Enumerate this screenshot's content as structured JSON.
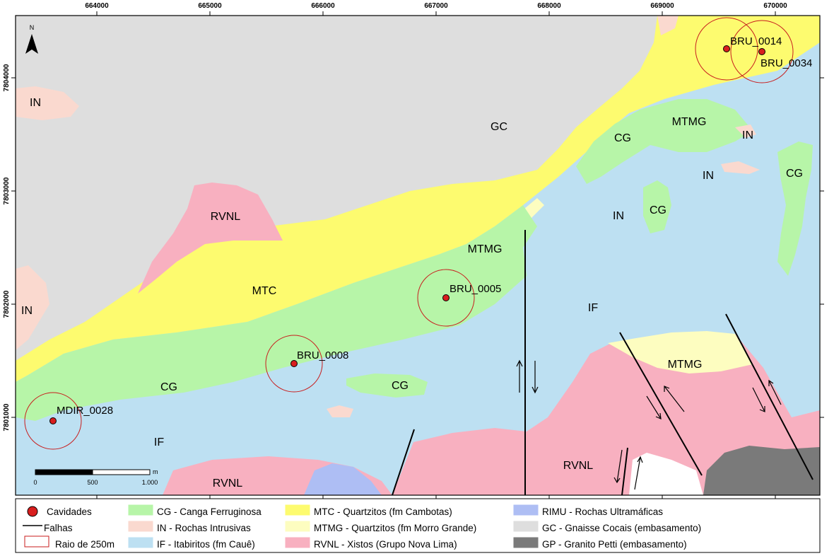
{
  "colors": {
    "CG": "#b7f5a8",
    "IN": "#fad9cf",
    "IF": "#bde0f2",
    "MTC": "#fdfb6f",
    "MTMG": "#fdfdc0",
    "RVNL": "#f8b0c0",
    "RIMU": "#aebef4",
    "GC": "#dedede",
    "GP": "#7a7a7a",
    "cave": "#d81e1e",
    "radius": "#c81e1e"
  },
  "north_arrow": {
    "label": "N"
  },
  "x_ticks": [
    "664000",
    "665000",
    "666000",
    "667000",
    "668000",
    "669000",
    "670000"
  ],
  "y_ticks": [
    "7804000",
    "7803000",
    "7802000",
    "7801000"
  ],
  "scale_bar": {
    "labels": [
      "0",
      "500",
      "1.000"
    ],
    "unit": "m"
  },
  "unit_labels": [
    {
      "id": "in-1",
      "text": "IN"
    },
    {
      "id": "in-2",
      "text": "IN"
    },
    {
      "id": "in-3",
      "text": "IN"
    },
    {
      "id": "in-4",
      "text": "IN"
    },
    {
      "id": "in-5",
      "text": "IN"
    },
    {
      "id": "gc-1",
      "text": "GC"
    },
    {
      "id": "rvnl-1",
      "text": "RVNL"
    },
    {
      "id": "rvnl-2",
      "text": "RVNL"
    },
    {
      "id": "rvnl-3",
      "text": "RVNL"
    },
    {
      "id": "mtc-1",
      "text": "MTC"
    },
    {
      "id": "mtmg-1",
      "text": "MTMG"
    },
    {
      "id": "mtmg-2",
      "text": "MTMG"
    },
    {
      "id": "mtmg-3",
      "text": "MTMG"
    },
    {
      "id": "cg-1",
      "text": "CG"
    },
    {
      "id": "cg-2",
      "text": "CG"
    },
    {
      "id": "cg-3",
      "text": "CG"
    },
    {
      "id": "cg-4",
      "text": "CG"
    },
    {
      "id": "cg-5",
      "text": "CG"
    },
    {
      "id": "if-1",
      "text": "IF"
    },
    {
      "id": "if-2",
      "text": "IF"
    }
  ],
  "caves": [
    {
      "id": "BRU_0014",
      "label": "BRU_0014"
    },
    {
      "id": "BRU_0034",
      "label": "BRU_0034"
    },
    {
      "id": "BRU_0005",
      "label": "BRU_0005"
    },
    {
      "id": "BRU_0008",
      "label": "BRU_0008"
    },
    {
      "id": "MDIR_0028",
      "label": "MDIR_0028"
    }
  ],
  "legend": {
    "symbols": [
      {
        "label": "Cavidades",
        "kind": "cave"
      },
      {
        "label": "Falhas",
        "kind": "fault"
      },
      {
        "label": "Raio de 250m",
        "kind": "radius"
      }
    ],
    "units": [
      {
        "label": "CG - Canga Ferruginosa",
        "color": "#b7f5a8"
      },
      {
        "label": "IN - Rochas Intrusivas",
        "color": "#fad9cf"
      },
      {
        "label": "IF - Itabiritos (fm Cauê)",
        "color": "#bde0f2"
      },
      {
        "label": "MTC - Quartzitos (fm Cambotas)",
        "color": "#fdfb6f"
      },
      {
        "label": "MTMG - Quartzitos (fm Morro Grande)",
        "color": "#fdfdc0"
      },
      {
        "label": "RVNL - Xistos (Grupo Nova Lima)",
        "color": "#f8b0c0"
      },
      {
        "label": "RIMU - Rochas Ultramáficas",
        "color": "#aebef4"
      },
      {
        "label": "GC - Gnaisse Cocais (embasamento)",
        "color": "#dedede"
      },
      {
        "label": "GP - Granito Petti (embasamento)",
        "color": "#7a7a7a"
      }
    ]
  }
}
